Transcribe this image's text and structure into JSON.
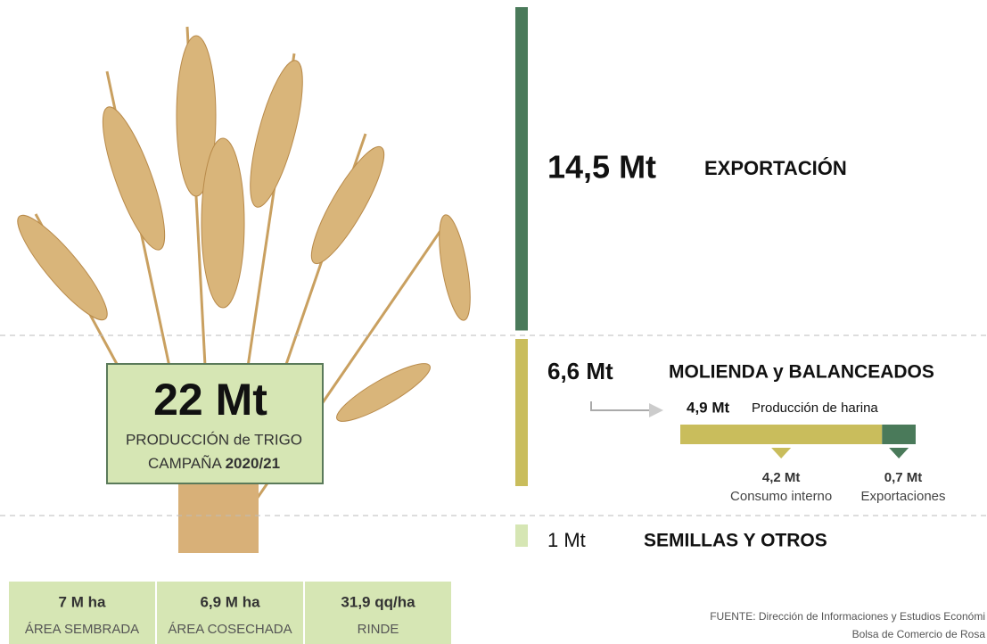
{
  "production": {
    "value_label": "22 Mt",
    "line1": "PRODUCCIÓN de TRIGO",
    "line2_prefix": "CAMPAÑA",
    "line2_bold": "2020/21"
  },
  "segments": [
    {
      "value": 14.5,
      "value_label": "14,5 Mt",
      "name": "EXPORTACIÓN",
      "color": "#4a7a5a"
    },
    {
      "value": 6.6,
      "value_label": "6,6 Mt",
      "name": "MOLIENDA y BALANCEADOS",
      "color": "#c9bd5c"
    },
    {
      "value": 1,
      "value_label": "1 Mt",
      "name": "SEMILLAS Y OTROS",
      "color": "#d6e6b4"
    }
  ],
  "flour": {
    "value": 4.9,
    "value_label": "4,9 Mt",
    "name": "Producción de harina",
    "parts": [
      {
        "value": 4.2,
        "value_label": "4,2 Mt",
        "name": "Consumo interno",
        "color": "#c9bd5c"
      },
      {
        "value": 0.7,
        "value_label": "0,7 Mt",
        "name": "Exportaciones",
        "color": "#4a7a5a"
      }
    ]
  },
  "stats": [
    {
      "value": "7 M ha",
      "label": "ÁREA SEMBRADA"
    },
    {
      "value": "6,9 M ha",
      "label": "ÁREA COSECHADA"
    },
    {
      "value": "31,9 qq/ha",
      "label": "RINDE"
    }
  ],
  "source": {
    "line1": "FUENTE: Dirección de Informaciones y Estudios Económi",
    "line2": "Bolsa de Comercio de Rosa"
  }
}
